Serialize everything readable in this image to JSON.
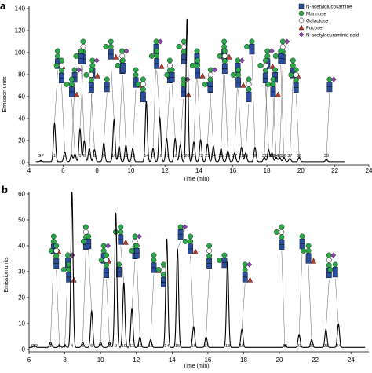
{
  "legend": {
    "items": [
      {
        "label": "N-acetylglucosamine",
        "symbol": "square",
        "color": "#2b4f9e"
      },
      {
        "label": "Mannose",
        "symbol": "circle",
        "color": "#2aa84a"
      },
      {
        "label": "Galactose",
        "symbol": "circle-open",
        "color": "#f2d230"
      },
      {
        "label": "Fucose",
        "symbol": "triangle",
        "color": "#c0392b"
      },
      {
        "label": "N-acetylneuraminic acid",
        "symbol": "diamond",
        "color": "#8e44ad"
      }
    ]
  },
  "chart_data": [
    {
      "panel": "a",
      "type": "line",
      "xlabel": "Time (min)",
      "ylabel": "Emission units",
      "xlim": [
        4,
        24
      ],
      "ylim": [
        0,
        140
      ],
      "xticks": [
        4,
        6,
        8,
        10,
        12,
        14,
        16,
        18,
        20,
        22,
        24
      ],
      "yticks": [
        0,
        20,
        40,
        60,
        80,
        100,
        120,
        140
      ],
      "peak_width": 0.06,
      "baseline_end": 22.6,
      "peaks": [
        {
          "label": "GP",
          "x": 4.7,
          "y": 1
        },
        {
          "label": "1",
          "x": 5.5,
          "y": 35
        },
        {
          "label": "2",
          "x": 6.1,
          "y": 9
        },
        {
          "label": "3",
          "x": 6.5,
          "y": 6
        },
        {
          "label": "4",
          "x": 6.7,
          "y": 7
        },
        {
          "label": "5",
          "x": 7.0,
          "y": 30
        },
        {
          "label": "6",
          "x": 7.25,
          "y": 19
        },
        {
          "label": "7",
          "x": 7.55,
          "y": 12
        },
        {
          "label": "8",
          "x": 7.85,
          "y": 11
        },
        {
          "label": "9",
          "x": 8.4,
          "y": 17
        },
        {
          "label": "10",
          "x": 9.0,
          "y": 38
        },
        {
          "label": "11",
          "x": 9.3,
          "y": 14
        },
        {
          "label": "12",
          "x": 9.7,
          "y": 15
        },
        {
          "label": "13",
          "x": 10.1,
          "y": 12
        },
        {
          "label": "14",
          "x": 10.9,
          "y": 55
        },
        {
          "label": "15",
          "x": 11.3,
          "y": 12
        },
        {
          "label": "16",
          "x": 11.7,
          "y": 40
        },
        {
          "label": "17",
          "x": 12.1,
          "y": 21
        },
        {
          "label": "18",
          "x": 12.6,
          "y": 21
        },
        {
          "label": "19",
          "x": 12.9,
          "y": 15
        },
        {
          "label": "20",
          "x": 13.3,
          "y": 130
        },
        {
          "label": "21",
          "x": 13.7,
          "y": 18
        },
        {
          "label": "22",
          "x": 14.1,
          "y": 20
        },
        {
          "label": "23",
          "x": 14.5,
          "y": 16
        },
        {
          "label": "24",
          "x": 14.85,
          "y": 14
        },
        {
          "label": "25",
          "x": 15.3,
          "y": 12
        },
        {
          "label": "26",
          "x": 15.7,
          "y": 10
        },
        {
          "label": "27",
          "x": 16.1,
          "y": 8
        },
        {
          "label": "28",
          "x": 16.5,
          "y": 13
        },
        {
          "label": "29",
          "x": 16.75,
          "y": 8
        },
        {
          "label": "30",
          "x": 17.3,
          "y": 13
        },
        {
          "label": "31",
          "x": 17.85,
          "y": 4
        },
        {
          "label": "32",
          "x": 18.1,
          "y": 11
        },
        {
          "label": "33",
          "x": 18.3,
          "y": 8
        },
        {
          "label": "34",
          "x": 18.55,
          "y": 4
        },
        {
          "label": "35",
          "x": 18.75,
          "y": 4
        },
        {
          "label": "36",
          "x": 19.0,
          "y": 4
        },
        {
          "label": "37",
          "x": 19.35,
          "y": 3
        },
        {
          "label": "38",
          "x": 19.9,
          "y": 4
        },
        {
          "label": "39",
          "x": 21.5,
          "y": 2
        }
      ]
    },
    {
      "panel": "b",
      "type": "line",
      "xlabel": "Time (min)",
      "ylabel": "Emission units",
      "xlim": [
        6,
        25
      ],
      "ylim": [
        0,
        60
      ],
      "xticks": [
        6,
        8,
        10,
        12,
        14,
        16,
        18,
        20,
        22,
        24
      ],
      "yticks": [
        0,
        10,
        20,
        30,
        40,
        50,
        60
      ],
      "peak_width": 0.06,
      "baseline_end": 24.8,
      "peaks": [
        {
          "label": "GP",
          "x": 6.3,
          "y": 1
        },
        {
          "label": "1",
          "x": 7.2,
          "y": 2
        },
        {
          "label": "2",
          "x": 7.7,
          "y": 1
        },
        {
          "label": "3",
          "x": 8.0,
          "y": 1
        },
        {
          "label": "4",
          "x": 8.4,
          "y": 60
        },
        {
          "label": "5",
          "x": 9.0,
          "y": 2
        },
        {
          "label": "6",
          "x": 9.5,
          "y": 14
        },
        {
          "label": "7",
          "x": 10.0,
          "y": 2
        },
        {
          "label": "8",
          "x": 10.5,
          "y": 2
        },
        {
          "label": "9",
          "x": 10.85,
          "y": 52
        },
        {
          "label": "10",
          "x": 11.3,
          "y": 25
        },
        {
          "label": "11",
          "x": 11.75,
          "y": 15
        },
        {
          "label": "12",
          "x": 12.2,
          "y": 4
        },
        {
          "label": "13",
          "x": 12.8,
          "y": 3
        },
        {
          "label": "14",
          "x": 13.7,
          "y": 42
        },
        {
          "label": "15",
          "x": 14.3,
          "y": 38
        },
        {
          "label": "16",
          "x": 15.2,
          "y": 8
        },
        {
          "label": "17",
          "x": 15.9,
          "y": 4
        },
        {
          "label": "18",
          "x": 17.1,
          "y": 33
        },
        {
          "label": "19",
          "x": 17.9,
          "y": 7
        },
        {
          "label": "20",
          "x": 20.3,
          "y": 1
        },
        {
          "label": "21",
          "x": 21.1,
          "y": 5
        },
        {
          "label": "22",
          "x": 21.8,
          "y": 3
        },
        {
          "label": "23",
          "x": 22.6,
          "y": 7
        },
        {
          "label": "24",
          "x": 23.3,
          "y": 9
        }
      ]
    }
  ]
}
